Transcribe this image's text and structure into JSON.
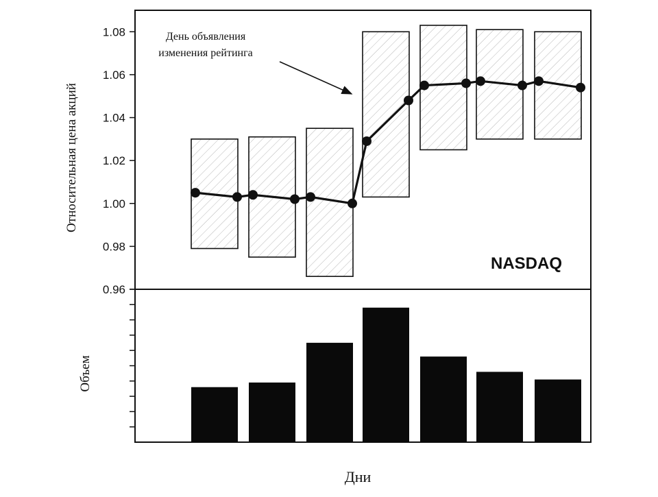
{
  "chart_data": [
    {
      "type": "line",
      "ylabel": "Относительная цена акций",
      "ylim": [
        0.96,
        1.09
      ],
      "yticks": [
        0.96,
        0.98,
        1.0,
        1.02,
        1.04,
        1.06,
        1.08
      ],
      "ytick_labels": [
        "0.96",
        "0.98",
        "1.00",
        "1.02",
        "1.04",
        "1.06",
        "1.08"
      ],
      "annotation": {
        "lines": [
          "День объявления",
          "изменения рейтинга"
        ],
        "points_to_day": 4
      },
      "market_label": "NASDAQ",
      "days": [
        1,
        2,
        3,
        4,
        5,
        6,
        7
      ],
      "ranges": [
        {
          "day": 1,
          "low": 0.979,
          "high": 1.03
        },
        {
          "day": 2,
          "low": 0.975,
          "high": 1.031
        },
        {
          "day": 3,
          "low": 0.966,
          "high": 1.035
        },
        {
          "day": 4,
          "low": 1.003,
          "high": 1.08
        },
        {
          "day": 5,
          "low": 1.025,
          "high": 1.083
        },
        {
          "day": 6,
          "low": 1.03,
          "high": 1.081
        },
        {
          "day": 7,
          "low": 1.03,
          "high": 1.08
        }
      ],
      "series": [
        {
          "points": [
            {
              "day": 1,
              "pos": "start",
              "value": 1.005
            },
            {
              "day": 1,
              "pos": "end",
              "value": 1.003
            },
            {
              "day": 2,
              "pos": "start",
              "value": 1.004
            },
            {
              "day": 2,
              "pos": "end",
              "value": 1.002
            },
            {
              "day": 3,
              "pos": "start",
              "value": 1.003
            },
            {
              "day": 3,
              "pos": "end",
              "value": 1.0
            },
            {
              "day": 4,
              "pos": "start",
              "value": 1.029
            },
            {
              "day": 4,
              "pos": "end",
              "value": 1.048
            },
            {
              "day": 5,
              "pos": "start",
              "value": 1.055
            },
            {
              "day": 5,
              "pos": "end",
              "value": 1.056
            },
            {
              "day": 6,
              "pos": "start",
              "value": 1.057
            },
            {
              "day": 6,
              "pos": "end",
              "value": 1.055
            },
            {
              "day": 7,
              "pos": "start",
              "value": 1.057
            },
            {
              "day": 7,
              "pos": "end",
              "value": 1.054
            }
          ]
        }
      ]
    },
    {
      "type": "bar",
      "ylabel": "Объем",
      "xlabel": "Дни",
      "days": [
        1,
        2,
        3,
        4,
        5,
        6,
        7
      ],
      "ylim": [
        0,
        10
      ],
      "yticks": [
        1,
        2,
        3,
        4,
        5,
        6,
        7,
        8,
        9,
        10
      ],
      "values": [
        3.6,
        3.9,
        6.5,
        8.8,
        5.6,
        4.6,
        4.1
      ]
    }
  ]
}
